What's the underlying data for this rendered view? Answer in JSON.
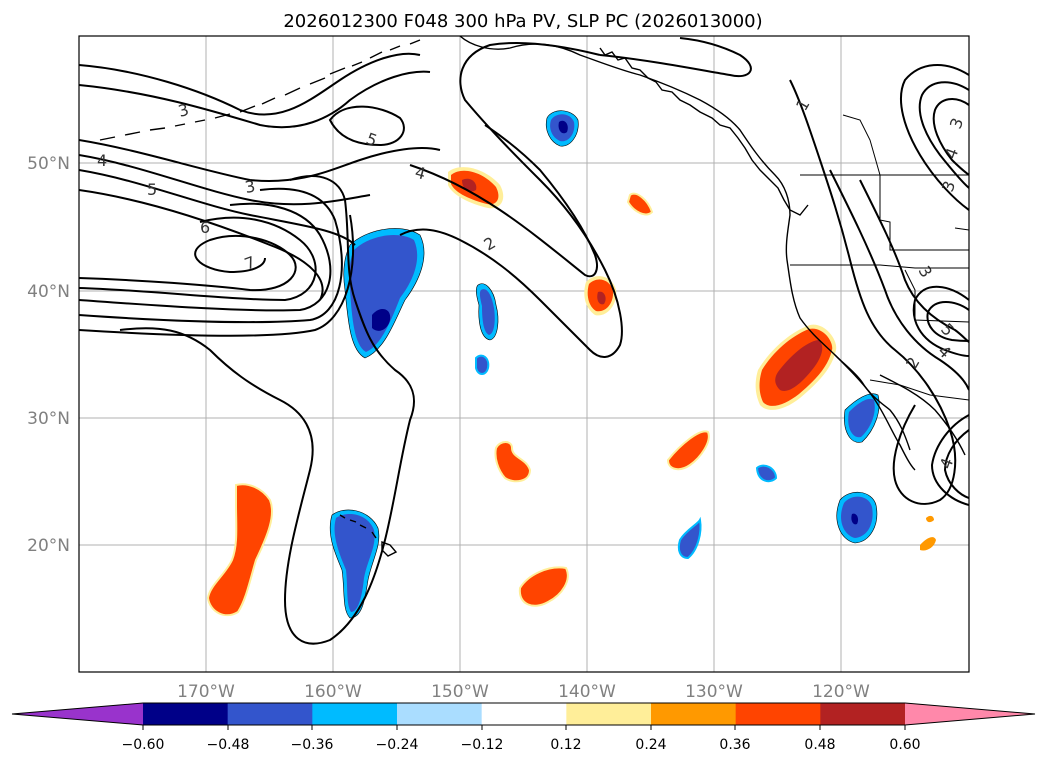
{
  "title": "2026012300 F048 300 hPa PV, SLP PC (2026013000)",
  "lon_labels": [
    "170°W",
    "160°W",
    "150°W",
    "140°W",
    "130°W",
    "120°W"
  ],
  "lat_labels": [
    "50°N",
    "40°N",
    "30°N",
    "20°N"
  ],
  "colorbar": {
    "ticks": [
      "−0.60",
      "−0.48",
      "−0.36",
      "−0.24",
      "−0.12",
      "0.12",
      "0.24",
      "0.36",
      "0.48",
      "0.60"
    ],
    "colors": [
      "#9933cc",
      "#000088",
      "#3355cc",
      "#00bbff",
      "#aaddff",
      "#ffffff",
      "#ffee99",
      "#ff9900",
      "#ff4400",
      "#b22222",
      "#ff88aa"
    ]
  },
  "contour_labels": [
    "3",
    "4",
    "5",
    "6",
    "7",
    "5",
    "4",
    "3",
    "2",
    "1",
    "3",
    "3",
    "4",
    "5",
    "4",
    "2",
    "3",
    "4"
  ],
  "colors": {
    "neg_deep": "#000088",
    "neg_mid": "#3355cc",
    "neg_light": "#00bbff",
    "pos_light": "#ffee99",
    "pos_mid": "#ff9900",
    "pos_strong": "#ff4400",
    "pos_deep": "#b22222"
  }
}
